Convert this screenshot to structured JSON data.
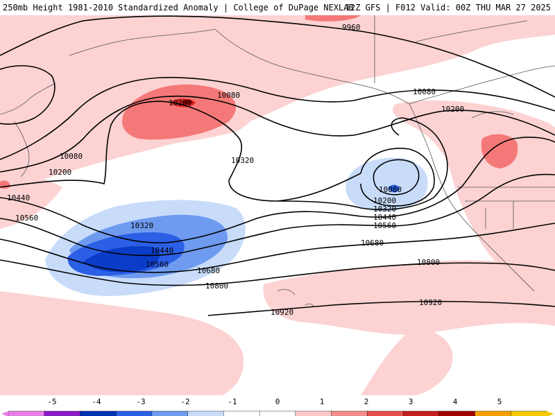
{
  "header": {
    "title": "250mb Height 1981-2010 Standardized Anomaly | College of DuPage NEXLAB",
    "run_info": "12Z GFS | F012 Valid: 00Z THU MAR 27 2025"
  },
  "contour_labels": [
    {
      "id": "c9960",
      "text": "9960"
    },
    {
      "id": "c10080a",
      "text": "10080"
    },
    {
      "id": "c10080b",
      "text": "10080"
    },
    {
      "id": "c10080c",
      "text": "10080"
    },
    {
      "id": "c10080d",
      "text": "10080"
    },
    {
      "id": "c10200a",
      "text": "10200"
    },
    {
      "id": "c10200b",
      "text": "10200"
    },
    {
      "id": "c10200c",
      "text": "10200"
    },
    {
      "id": "c10200d",
      "text": "10200"
    },
    {
      "id": "c10320a",
      "text": "10320"
    },
    {
      "id": "c10320b",
      "text": "10320"
    },
    {
      "id": "c10320c",
      "text": "10320"
    },
    {
      "id": "c10440a",
      "text": "10440"
    },
    {
      "id": "c10440b",
      "text": "10440"
    },
    {
      "id": "c10440c",
      "text": "10440"
    },
    {
      "id": "c10560a",
      "text": "10560"
    },
    {
      "id": "c10560b",
      "text": "10560"
    },
    {
      "id": "c10560c",
      "text": "10560"
    },
    {
      "id": "c10680a",
      "text": "10680"
    },
    {
      "id": "c10680b",
      "text": "10680"
    },
    {
      "id": "c10800a",
      "text": "10800"
    },
    {
      "id": "c10800b",
      "text": "10800"
    },
    {
      "id": "c10920a",
      "text": "10920"
    },
    {
      "id": "c10920b",
      "text": "10920"
    }
  ],
  "colorbar": {
    "ticks": [
      "-5",
      "-4",
      "-3",
      "-2",
      "-1",
      "0",
      "1",
      "2",
      "3",
      "4",
      "5"
    ],
    "colors": [
      "#e67ee6",
      "#8a1cc8",
      "#0033b4",
      "#2b5fe6",
      "#6e9bf0",
      "#c8dcfa",
      "#ffffff",
      "#ffffff",
      "#fcc8c8",
      "#f58c8c",
      "#e65050",
      "#c81e1e",
      "#a00000",
      "#f5a000",
      "#f5c800"
    ]
  },
  "colors": {
    "neg1": "#c8dcfa",
    "neg2": "#6e9bf0",
    "neg3": "#2b5fe6",
    "neg4": "#0a3cc8",
    "pos1": "#fcd2d2",
    "pos2": "#f57878",
    "pos3": "#dc2828",
    "pos4": "#a00000"
  }
}
